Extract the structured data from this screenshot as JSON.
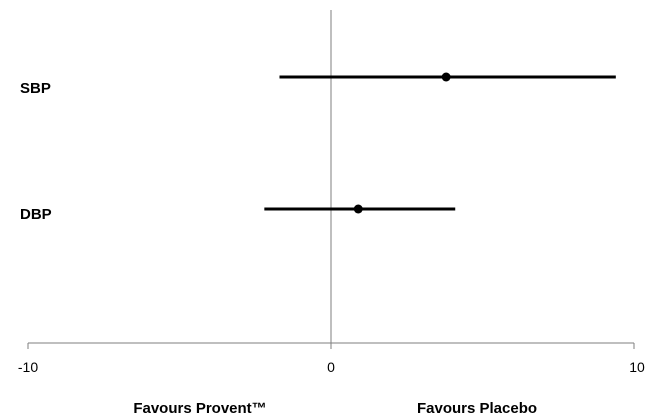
{
  "chart_data": {
    "type": "forest",
    "title": "",
    "xlim": [
      -10,
      10
    ],
    "x_ticks": [
      -10,
      0,
      10
    ],
    "x_tick_labels": [
      "-10",
      "0",
      "10"
    ],
    "grid": false,
    "categories": [
      "SBP",
      "DBP"
    ],
    "estimates": [
      {
        "label": "SBP",
        "value": 3.8,
        "ci_low": -1.7,
        "ci_high": 9.4
      },
      {
        "label": "DBP",
        "value": 0.9,
        "ci_low": -2.2,
        "ci_high": 4.1
      }
    ],
    "favours_left": "Favours Provent™",
    "favours_right": "Favours Placebo",
    "colors": {
      "line": "#000000",
      "reference": "#7f7f7f",
      "axis": "#7f7f7f"
    }
  }
}
